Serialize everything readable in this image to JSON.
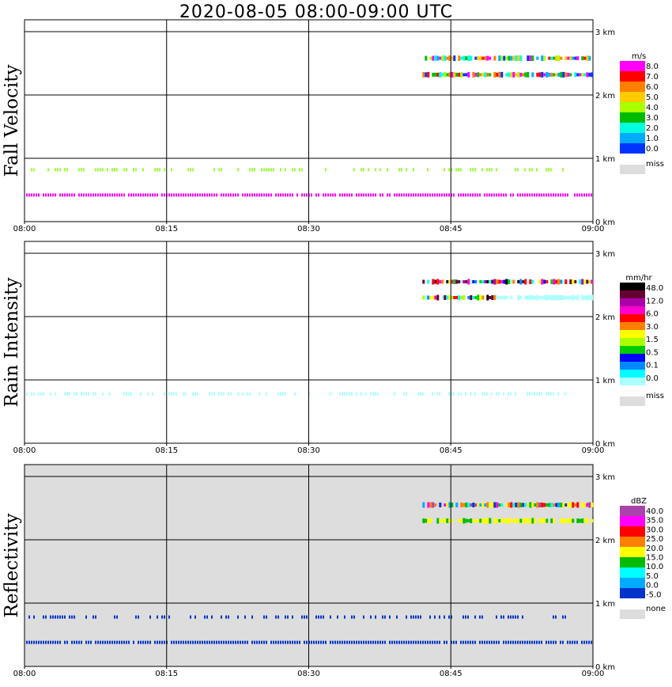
{
  "title": "2020-08-05   08:00-09:00 UTC",
  "chart_data": [
    {
      "type": "heatmap",
      "panel": "Fall Velocity",
      "ylabel": "Fall Velocity",
      "x_ticks": [
        "08:00",
        "08:15",
        "08:30",
        "08:45",
        "09:00"
      ],
      "y_ticks": [
        "0 km",
        "1 km",
        "2 km",
        "3 km"
      ],
      "xlim": [
        "08:00",
        "09:00"
      ],
      "ylim_km": [
        0,
        3.2
      ],
      "background": "#ffffff",
      "colorbar": {
        "unit": "m/s",
        "labels": [
          "8.0",
          "7.0",
          "6.0",
          "5.0",
          "4.0",
          "3.0",
          "2.0",
          "1.0",
          "0.0"
        ],
        "colors": [
          "#ff00ff",
          "#ff0000",
          "#ff7f00",
          "#ffcc00",
          "#aaff00",
          "#00bb00",
          "#00ffdd",
          "#00aaff",
          "#0033ff"
        ],
        "miss_label": "miss",
        "miss_color": "#dddddd"
      },
      "layers": [
        {
          "name": "near-surface band",
          "y_km": 0.42,
          "x_start_min": 0,
          "x_end_min": 60,
          "value": 8.0,
          "color": "#ff00ff"
        },
        {
          "name": "1 km band",
          "y_km": 0.82,
          "x_start_min": 0,
          "x_end_min": 57,
          "value": 4.5,
          "color": "#99ff33"
        },
        {
          "name": "upper layer",
          "y_km": 2.58,
          "x_start_min": 42,
          "x_end_min": 60,
          "value": "mixed 2-8",
          "color": "#ff00ff"
        },
        {
          "name": "lower layer",
          "y_km": 2.32,
          "x_start_min": 42,
          "x_end_min": 60,
          "value": "mixed 2-8",
          "color": "#ff00ff"
        }
      ]
    },
    {
      "type": "heatmap",
      "panel": "Rain Intensity",
      "ylabel": "Rain Intensity",
      "x_ticks": [
        "08:00",
        "08:15",
        "08:30",
        "08:45",
        "09:00"
      ],
      "y_ticks": [
        "0 km",
        "1 km",
        "2 km",
        "3 km"
      ],
      "xlim": [
        "08:00",
        "09:00"
      ],
      "ylim_km": [
        0,
        3.2
      ],
      "background": "#ffffff",
      "colorbar": {
        "unit": "mm/hr",
        "labels": [
          "48.0",
          "12.0",
          "6.0",
          "3.0",
          "1.5",
          "0.5",
          "0.1",
          "0.0"
        ],
        "colors": [
          "#000000",
          "#660033",
          "#aa00aa",
          "#ff00cc",
          "#ff0000",
          "#ff7f00",
          "#ffff00",
          "#aaff00",
          "#00cc00",
          "#0000ff",
          "#0088ff",
          "#00ffff",
          "#aaffff"
        ],
        "miss_label": "miss",
        "miss_color": "#dddddd"
      },
      "layers": [
        {
          "name": "1 km band",
          "y_km": 0.78,
          "x_start_min": 0,
          "x_end_min": 57,
          "value": 0.1,
          "color": "#aaffff"
        },
        {
          "name": "upper layer",
          "y_km": 2.55,
          "x_start_min": 42,
          "x_end_min": 60,
          "value": "mixed 0.1-48",
          "color": "#ff00cc"
        },
        {
          "name": "lower layer",
          "y_km": 2.3,
          "x_start_min": 42,
          "x_end_min": 60,
          "value": "mixed 0.1-12",
          "color": "#aaffff"
        }
      ]
    },
    {
      "type": "heatmap",
      "panel": "Reflectivity",
      "ylabel": "Reflectivity",
      "x_ticks": [
        "08:00",
        "08:15",
        "08:30",
        "08:45",
        "09:00"
      ],
      "y_ticks": [
        "0 km",
        "1 km",
        "2 km",
        "3 km"
      ],
      "xlim": [
        "08:00",
        "09:00"
      ],
      "ylim_km": [
        0,
        3.2
      ],
      "background": "#dddddd",
      "colorbar": {
        "unit": "dBZ",
        "labels": [
          "40.0",
          "35.0",
          "30.0",
          "25.0",
          "20.0",
          "15.0",
          "10.0",
          "5.0",
          "0.0",
          "-5.0"
        ],
        "colors": [
          "#aa44aa",
          "#ff00ff",
          "#ff0000",
          "#ff7f00",
          "#ffff00",
          "#00bb00",
          "#00ffff",
          "#00aaff",
          "#0033cc"
        ],
        "miss_label": "none",
        "miss_color": "#dddddd"
      },
      "layers": [
        {
          "name": "near-surface band",
          "y_km": 0.38,
          "x_start_min": 0,
          "x_end_min": 60,
          "value": -5.0,
          "color": "#0033cc"
        },
        {
          "name": "1 km band",
          "y_km": 0.78,
          "x_start_min": 0,
          "x_end_min": 57,
          "value": 0.0,
          "color": "#0033cc"
        },
        {
          "name": "upper layer",
          "y_km": 2.55,
          "x_start_min": 42,
          "x_end_min": 60,
          "value": "mixed 15-35",
          "color": "#ff0000"
        },
        {
          "name": "lower layer",
          "y_km": 2.3,
          "x_start_min": 42,
          "x_end_min": 60,
          "value": "mixed 10-20",
          "color": "#ffff00"
        }
      ]
    }
  ]
}
